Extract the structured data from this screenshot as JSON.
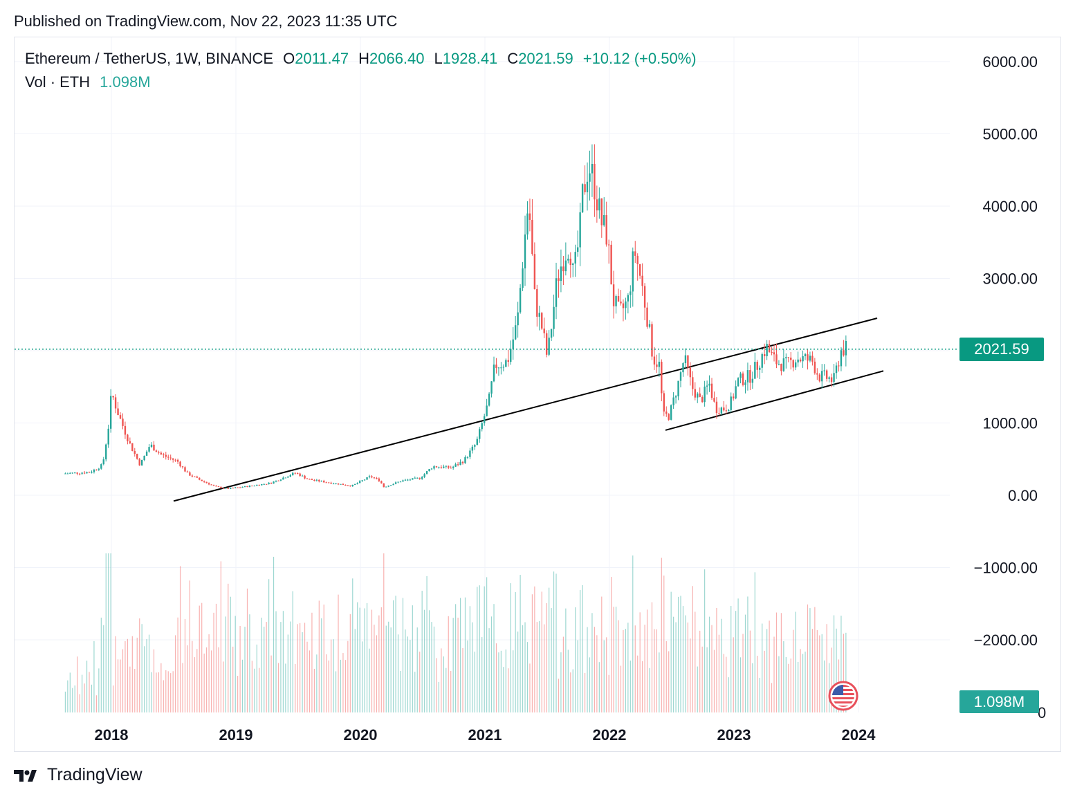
{
  "header": {
    "published": "Published on TradingView.com, Nov 22, 2023 11:35 UTC"
  },
  "legend": {
    "symbol": "Ethereum / TetherUS, 1W, BINANCE",
    "open_label": "O",
    "open": "2011.47",
    "high_label": "H",
    "high": "2066.40",
    "low_label": "L",
    "low": "1928.41",
    "close_label": "C",
    "close": "2021.59",
    "change": "+10.12 (+0.50%)",
    "vol_label": "Vol · ETH",
    "vol": "1.098M"
  },
  "price_tag": "2021.59",
  "vol_tag": "1.098M",
  "footer": {
    "brand": "TradingView"
  },
  "colors": {
    "up": "#26a69a",
    "down": "#ef5350",
    "price_line": "#089981",
    "grid": "#f0f3fa",
    "text": "#131722"
  },
  "chart_data": {
    "type": "candlestick",
    "interval": "1W",
    "series_name": "Ethereum / TetherUS",
    "y_axis": {
      "ticks": [
        6000,
        5000,
        4000,
        3000,
        2000,
        1000,
        0,
        -1000,
        -2000
      ],
      "tick_labels": [
        "6000.00",
        "5000.00",
        "4000.00",
        "3000.00",
        "1000.00",
        "0.00",
        "−1000.00",
        "−2000.00"
      ],
      "extra_label": "0",
      "ylim": [
        -3000,
        6300
      ]
    },
    "x_axis": {
      "tick_labels": [
        "2018",
        "2019",
        "2020",
        "2021",
        "2022",
        "2023",
        "2024"
      ],
      "tick_years": [
        2018,
        2019,
        2020,
        2021,
        2022,
        2023,
        2024
      ],
      "xlim": [
        2017.4,
        2024.35
      ]
    },
    "last_price": 2021.59,
    "key_points": [
      {
        "x": 2017.63,
        "y": 300
      },
      {
        "x": 2017.85,
        "y": 320
      },
      {
        "x": 2017.95,
        "y": 420
      },
      {
        "x": 2018.0,
        "y": 1000
      },
      {
        "x": 2018.02,
        "y": 1420
      },
      {
        "x": 2018.08,
        "y": 1100
      },
      {
        "x": 2018.17,
        "y": 700
      },
      {
        "x": 2018.25,
        "y": 420
      },
      {
        "x": 2018.33,
        "y": 700
      },
      {
        "x": 2018.42,
        "y": 560
      },
      {
        "x": 2018.55,
        "y": 470
      },
      {
        "x": 2018.63,
        "y": 300
      },
      {
        "x": 2018.72,
        "y": 220
      },
      {
        "x": 2018.85,
        "y": 120
      },
      {
        "x": 2018.95,
        "y": 90
      },
      {
        "x": 2019.1,
        "y": 120
      },
      {
        "x": 2019.3,
        "y": 170
      },
      {
        "x": 2019.45,
        "y": 280
      },
      {
        "x": 2019.5,
        "y": 310
      },
      {
        "x": 2019.6,
        "y": 220
      },
      {
        "x": 2019.75,
        "y": 180
      },
      {
        "x": 2019.95,
        "y": 130
      },
      {
        "x": 2020.1,
        "y": 260
      },
      {
        "x": 2020.18,
        "y": 200
      },
      {
        "x": 2020.2,
        "y": 110
      },
      {
        "x": 2020.35,
        "y": 200
      },
      {
        "x": 2020.5,
        "y": 240
      },
      {
        "x": 2020.6,
        "y": 400
      },
      {
        "x": 2020.75,
        "y": 380
      },
      {
        "x": 2020.85,
        "y": 480
      },
      {
        "x": 2020.95,
        "y": 720
      },
      {
        "x": 2021.05,
        "y": 1300
      },
      {
        "x": 2021.1,
        "y": 1800
      },
      {
        "x": 2021.2,
        "y": 1850
      },
      {
        "x": 2021.28,
        "y": 2400
      },
      {
        "x": 2021.33,
        "y": 3400
      },
      {
        "x": 2021.37,
        "y": 4100
      },
      {
        "x": 2021.42,
        "y": 2700
      },
      {
        "x": 2021.48,
        "y": 2300
      },
      {
        "x": 2021.52,
        "y": 1900
      },
      {
        "x": 2021.55,
        "y": 2300
      },
      {
        "x": 2021.6,
        "y": 3000
      },
      {
        "x": 2021.65,
        "y": 3300
      },
      {
        "x": 2021.7,
        "y": 3500
      },
      {
        "x": 2021.73,
        "y": 3000
      },
      {
        "x": 2021.78,
        "y": 3600
      },
      {
        "x": 2021.8,
        "y": 4100
      },
      {
        "x": 2021.85,
        "y": 4600
      },
      {
        "x": 2021.9,
        "y": 4300
      },
      {
        "x": 2021.95,
        "y": 3800
      },
      {
        "x": 2022.0,
        "y": 3600
      },
      {
        "x": 2022.05,
        "y": 2700
      },
      {
        "x": 2022.1,
        "y": 2500
      },
      {
        "x": 2022.17,
        "y": 2700
      },
      {
        "x": 2022.22,
        "y": 3400
      },
      {
        "x": 2022.27,
        "y": 3000
      },
      {
        "x": 2022.32,
        "y": 2500
      },
      {
        "x": 2022.37,
        "y": 1900
      },
      {
        "x": 2022.42,
        "y": 1800
      },
      {
        "x": 2022.45,
        "y": 1100
      },
      {
        "x": 2022.5,
        "y": 1100
      },
      {
        "x": 2022.58,
        "y": 1600
      },
      {
        "x": 2022.62,
        "y": 1900
      },
      {
        "x": 2022.68,
        "y": 1500
      },
      {
        "x": 2022.75,
        "y": 1300
      },
      {
        "x": 2022.82,
        "y": 1550
      },
      {
        "x": 2022.87,
        "y": 1200
      },
      {
        "x": 2022.95,
        "y": 1200
      },
      {
        "x": 2023.0,
        "y": 1300
      },
      {
        "x": 2023.05,
        "y": 1580
      },
      {
        "x": 2023.15,
        "y": 1650
      },
      {
        "x": 2023.2,
        "y": 1780
      },
      {
        "x": 2023.28,
        "y": 2050
      },
      {
        "x": 2023.35,
        "y": 1850
      },
      {
        "x": 2023.45,
        "y": 1800
      },
      {
        "x": 2023.52,
        "y": 1900
      },
      {
        "x": 2023.6,
        "y": 1880
      },
      {
        "x": 2023.65,
        "y": 1850
      },
      {
        "x": 2023.7,
        "y": 1650
      },
      {
        "x": 2023.78,
        "y": 1620
      },
      {
        "x": 2023.82,
        "y": 1580
      },
      {
        "x": 2023.85,
        "y": 1800
      },
      {
        "x": 2023.88,
        "y": 2000
      },
      {
        "x": 2023.9,
        "y": 2022
      }
    ],
    "trendlines": [
      {
        "x1": 2018.5,
        "y1": -80,
        "x2": 2024.15,
        "y2": 2450
      },
      {
        "x1": 2022.45,
        "y1": 900,
        "x2": 2024.2,
        "y2": 1720
      }
    ]
  }
}
